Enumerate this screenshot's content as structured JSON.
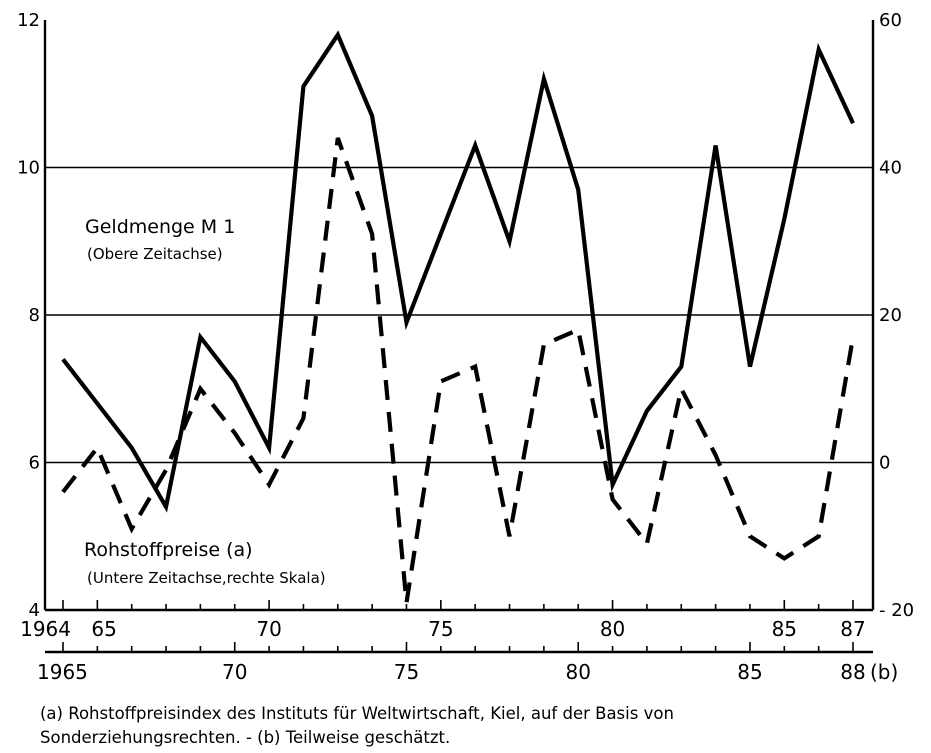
{
  "chart_data": {
    "type": "line",
    "grid": true,
    "left_axis": {
      "ylim": [
        4,
        12
      ],
      "ticks": [
        "4",
        "6",
        "8",
        "10",
        "12"
      ]
    },
    "right_axis": {
      "ylim": [
        -20,
        60
      ],
      "ticks": [
        "- 20",
        "0",
        "20",
        "40",
        "60"
      ]
    },
    "upper_time_axis": {
      "range": [
        1964,
        1987
      ],
      "tick_labels": [
        {
          "year": 1964,
          "label": "1964"
        },
        {
          "year": 1965,
          "label": "65"
        },
        {
          "year": 1970,
          "label": "70"
        },
        {
          "year": 1975,
          "label": "75"
        },
        {
          "year": 1980,
          "label": "80"
        },
        {
          "year": 1985,
          "label": "85"
        },
        {
          "year": 1987,
          "label": "87"
        }
      ]
    },
    "lower_time_axis": {
      "range": [
        1965,
        1988
      ],
      "tick_labels": [
        {
          "year": 1965,
          "label": "1965"
        },
        {
          "year": 1970,
          "label": "70"
        },
        {
          "year": 1975,
          "label": "75"
        },
        {
          "year": 1980,
          "label": "80"
        },
        {
          "year": 1985,
          "label": "85"
        },
        {
          "year": 1988,
          "label": "88"
        }
      ],
      "suffix": "(b)"
    },
    "series": [
      {
        "name": "Geldmenge M 1",
        "note": "(Obere Zeitachse)",
        "axis": "left",
        "time_axis": "upper",
        "style": "solid",
        "x": [
          1964,
          1965,
          1966,
          1967,
          1968,
          1969,
          1970,
          1971,
          1972,
          1973,
          1974,
          1975,
          1976,
          1977,
          1978,
          1979,
          1980,
          1981,
          1982,
          1983,
          1984,
          1985,
          1986,
          1987
        ],
        "values": [
          7.4,
          6.8,
          6.2,
          5.4,
          7.7,
          7.1,
          6.2,
          11.1,
          11.8,
          10.7,
          7.9,
          9.1,
          10.3,
          9.0,
          11.2,
          9.7,
          5.7,
          6.7,
          7.3,
          10.3,
          7.3,
          9.3,
          11.6,
          10.6
        ]
      },
      {
        "name": "Rohstoffpreise (a)",
        "note": "(Untere Zeitachse,rechte Skala)",
        "axis": "right",
        "time_axis": "lower",
        "style": "dashed",
        "x": [
          1965,
          1966,
          1967,
          1968,
          1969,
          1970,
          1971,
          1972,
          1973,
          1974,
          1975,
          1976,
          1977,
          1978,
          1979,
          1980,
          1981,
          1982,
          1983,
          1984,
          1985,
          1986,
          1987,
          1988
        ],
        "values": [
          -4,
          2,
          -9,
          -1,
          10,
          4,
          -3,
          6,
          44,
          31,
          -19,
          11,
          13,
          -10,
          16,
          18,
          -5,
          -11,
          10,
          1,
          -10,
          -13,
          -10,
          17
        ]
      }
    ]
  },
  "footnote": {
    "line1": "(a) Rohstoffpreisindex des Instituts für Weltwirtschaft, Kiel, auf der Basis von",
    "line2": "Sonderziehungsrechten. - (b) Teilweise geschätzt."
  }
}
